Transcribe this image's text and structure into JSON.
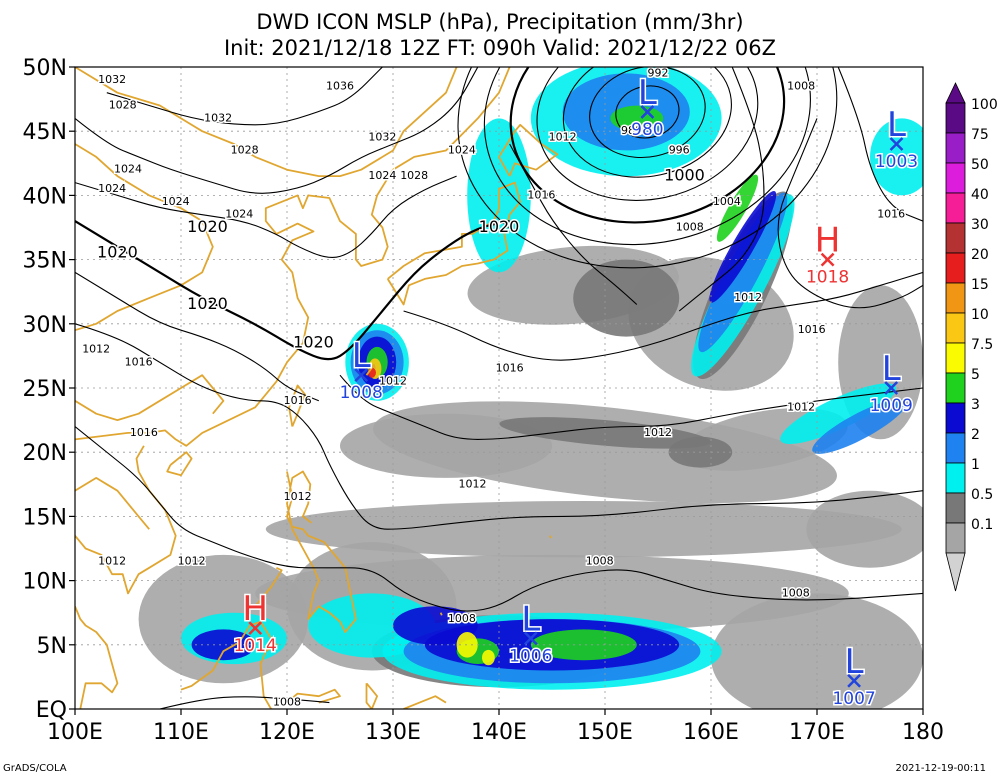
{
  "title": {
    "line1": "DWD ICON MSLP (hPa), Precipitation (mm/3hr)",
    "line2": "Init: 2021/12/18 12Z  FT: 090h  Valid: 2021/12/22 06Z"
  },
  "footer": {
    "left": "GrADS/COLA",
    "right": "2021-12-19-00:11"
  },
  "map": {
    "lon_range": [
      100,
      180
    ],
    "lat_range": [
      0,
      50
    ],
    "x_ticks": [
      {
        "value": 100,
        "label": "100E"
      },
      {
        "value": 110,
        "label": "110E"
      },
      {
        "value": 120,
        "label": "120E"
      },
      {
        "value": 130,
        "label": "130E"
      },
      {
        "value": 140,
        "label": "140E"
      },
      {
        "value": 150,
        "label": "150E"
      },
      {
        "value": 160,
        "label": "160E"
      },
      {
        "value": 170,
        "label": "170E"
      },
      {
        "value": 180,
        "label": "180"
      }
    ],
    "y_ticks": [
      {
        "value": 0,
        "label": "EQ"
      },
      {
        "value": 5,
        "label": "5N"
      },
      {
        "value": 10,
        "label": "10N"
      },
      {
        "value": 15,
        "label": "15N"
      },
      {
        "value": 20,
        "label": "20N"
      },
      {
        "value": 25,
        "label": "25N"
      },
      {
        "value": 30,
        "label": "30N"
      },
      {
        "value": 35,
        "label": "35N"
      },
      {
        "value": 40,
        "label": "40N"
      },
      {
        "value": 45,
        "label": "45N"
      },
      {
        "value": 50,
        "label": "50N"
      }
    ],
    "grid": true,
    "colors": {
      "coast": "#e0a630",
      "low": "#2244dd",
      "high": "#ee3333",
      "isobar": "#000000"
    }
  },
  "pressure_centers": [
    {
      "type": "L",
      "value": "980",
      "lon": 154,
      "lat": 46.5
    },
    {
      "type": "L",
      "value": "1003",
      "lon": 177.5,
      "lat": 44
    },
    {
      "type": "H",
      "value": "1018",
      "lon": 171,
      "lat": 35
    },
    {
      "type": "L",
      "value": "1008",
      "lon": 127,
      "lat": 26
    },
    {
      "type": "L",
      "value": "1009",
      "lon": 177,
      "lat": 25
    },
    {
      "type": "H",
      "value": "1014",
      "lon": 117,
      "lat": 6.3
    },
    {
      "type": "L",
      "value": "1006",
      "lon": 143,
      "lat": 5.5
    },
    {
      "type": "L",
      "value": "1007",
      "lon": 173.5,
      "lat": 2.2
    }
  ],
  "isobar_labels": [
    {
      "text": "1032",
      "lon": 103.5,
      "lat": 49
    },
    {
      "text": "1036",
      "lon": 125,
      "lat": 48.5
    },
    {
      "text": "1028",
      "lon": 104.5,
      "lat": 47
    },
    {
      "text": "1032",
      "lon": 113.5,
      "lat": 46
    },
    {
      "text": "1032",
      "lon": 129,
      "lat": 44.5
    },
    {
      "text": "1028",
      "lon": 116,
      "lat": 43.5
    },
    {
      "text": "1024",
      "lon": 136.5,
      "lat": 43.5
    },
    {
      "text": "1024",
      "lon": 105,
      "lat": 42
    },
    {
      "text": "1024",
      "lon": 129,
      "lat": 41.5
    },
    {
      "text": "1028",
      "lon": 132,
      "lat": 41.5
    },
    {
      "text": "1024",
      "lon": 103.5,
      "lat": 40.5
    },
    {
      "text": "1024",
      "lon": 109.5,
      "lat": 39.5
    },
    {
      "text": "1024",
      "lon": 115.5,
      "lat": 38.5
    },
    {
      "text": "1020",
      "lon": 112.5,
      "lat": 37.5
    },
    {
      "text": "1020",
      "lon": 104,
      "lat": 35.5
    },
    {
      "text": "1020",
      "lon": 112.5,
      "lat": 31.5
    },
    {
      "text": "1020",
      "lon": 122.5,
      "lat": 28.5
    },
    {
      "text": "1020",
      "lon": 140,
      "lat": 37.5
    },
    {
      "text": "1012",
      "lon": 102,
      "lat": 28
    },
    {
      "text": "1016",
      "lon": 106,
      "lat": 27
    },
    {
      "text": "1016",
      "lon": 121,
      "lat": 24
    },
    {
      "text": "1016",
      "lon": 106.5,
      "lat": 21.5
    },
    {
      "text": "1012",
      "lon": 130,
      "lat": 25.5
    },
    {
      "text": "1016",
      "lon": 141,
      "lat": 26.5
    },
    {
      "text": "1012",
      "lon": 121,
      "lat": 16.5
    },
    {
      "text": "1012",
      "lon": 137.5,
      "lat": 17.5
    },
    {
      "text": "1012",
      "lon": 103.5,
      "lat": 11.5
    },
    {
      "text": "1012",
      "lon": 111,
      "lat": 11.5
    },
    {
      "text": "1012",
      "lon": 155,
      "lat": 21.5
    },
    {
      "text": "1012",
      "lon": 163.5,
      "lat": 32
    },
    {
      "text": "1012",
      "lon": 168.5,
      "lat": 23.5
    },
    {
      "text": "1016",
      "lon": 169.5,
      "lat": 29.5
    },
    {
      "text": "1016",
      "lon": 177,
      "lat": 38.5
    },
    {
      "text": "1008",
      "lon": 168.5,
      "lat": 48.5
    },
    {
      "text": "1008",
      "lon": 158,
      "lat": 37.5
    },
    {
      "text": "1004",
      "lon": 161.5,
      "lat": 39.5
    },
    {
      "text": "1000",
      "lon": 157.5,
      "lat": 41.5
    },
    {
      "text": "996",
      "lon": 157,
      "lat": 43.5
    },
    {
      "text": "992",
      "lon": 155,
      "lat": 49.5
    },
    {
      "text": "988",
      "lon": 152.5,
      "lat": 45
    },
    {
      "text": "1012",
      "lon": 146,
      "lat": 44.5
    },
    {
      "text": "1016",
      "lon": 144,
      "lat": 40
    },
    {
      "text": "1008",
      "lon": 149.5,
      "lat": 11.5
    },
    {
      "text": "1008",
      "lon": 136.5,
      "lat": 7
    },
    {
      "text": "1008",
      "lon": 120,
      "lat": 0.5
    },
    {
      "text": "1008",
      "lon": 168,
      "lat": 9
    }
  ],
  "legend": {
    "entries": [
      {
        "label": "100",
        "color": "#5a0a84"
      },
      {
        "label": "75",
        "color": "#9a1ec8"
      },
      {
        "label": "50",
        "color": "#dc1edc"
      },
      {
        "label": "40",
        "color": "#f51e96"
      },
      {
        "label": "30",
        "color": "#b43232"
      },
      {
        "label": "20",
        "color": "#e61e1e"
      },
      {
        "label": "15",
        "color": "#f09614"
      },
      {
        "label": "10",
        "color": "#fac814"
      },
      {
        "label": "7.5",
        "color": "#fafa00"
      },
      {
        "label": "5",
        "color": "#1ed21e"
      },
      {
        "label": "3",
        "color": "#0a0ad2"
      },
      {
        "label": "2",
        "color": "#1e82f0"
      },
      {
        "label": "1",
        "color": "#00f0f0"
      },
      {
        "label": "0.5",
        "color": "#787878"
      },
      {
        "label": "0.1",
        "color": "#a5a5a5"
      }
    ],
    "bottom_color": "#d2d2d2"
  }
}
